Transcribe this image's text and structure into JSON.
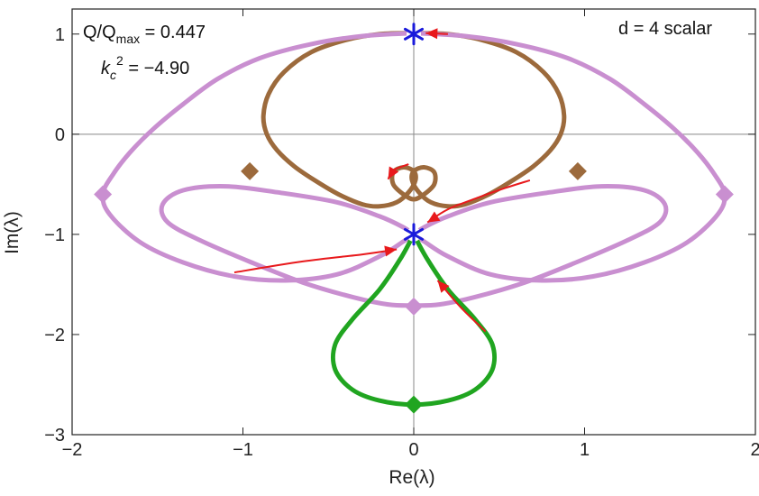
{
  "chart_data": {
    "type": "line",
    "title": "",
    "xlabel": "Re(λ)",
    "ylabel": "Im(λ)",
    "xlim": [
      -2,
      2
    ],
    "ylim": [
      -3,
      1.25
    ],
    "xticks": [
      -2,
      -1,
      0,
      1,
      2
    ],
    "yticks": [
      -3,
      -2,
      -1,
      0,
      1
    ],
    "xtick_labels": [
      "−2",
      "−1",
      "0",
      "1",
      "2"
    ],
    "ytick_labels": [
      "−3",
      "−2",
      "−1",
      "0",
      "1"
    ],
    "grid": false,
    "zero_lines": true,
    "annotations": {
      "ratio_lhs_main": "Q/Q",
      "ratio_lhs_sub": "max",
      "ratio_rhs": " = 0.447",
      "kc_main": "k",
      "kc_sub": "c",
      "kc_sup": "2",
      "kc_rhs": " = −4.90",
      "case": "d = 4 scalar"
    },
    "colors": {
      "brown": "#9c6a3c",
      "pink": "#c98fd0",
      "green": "#20a520",
      "red": "#e8191c",
      "star": "#1a1adb"
    },
    "series": [
      {
        "color": "#9c6a3c",
        "points": [
          [
            0,
            1.01
          ],
          [
            0.2,
            1.0
          ],
          [
            0.4,
            0.94
          ],
          [
            0.6,
            0.82
          ],
          [
            0.76,
            0.62
          ],
          [
            0.85,
            0.4
          ],
          [
            0.88,
            0.18
          ],
          [
            0.86,
            0.0
          ],
          [
            0.8,
            -0.16
          ],
          [
            0.7,
            -0.32
          ],
          [
            0.58,
            -0.46
          ],
          [
            0.44,
            -0.6
          ],
          [
            0.3,
            -0.7
          ],
          [
            0.2,
            -0.72
          ],
          [
            0.1,
            -0.68
          ],
          [
            0.03,
            -0.58
          ],
          [
            -0.01,
            -0.46
          ],
          [
            0.0,
            -0.37
          ],
          [
            0.06,
            -0.33
          ],
          [
            0.12,
            -0.38
          ],
          [
            0.12,
            -0.5
          ],
          [
            0.06,
            -0.6
          ],
          [
            0,
            -0.65
          ],
          [
            -0.06,
            -0.6
          ],
          [
            -0.12,
            -0.5
          ],
          [
            -0.12,
            -0.38
          ],
          [
            -0.06,
            -0.33
          ],
          [
            0.0,
            -0.37
          ],
          [
            0.01,
            -0.46
          ],
          [
            -0.03,
            -0.58
          ],
          [
            -0.1,
            -0.68
          ],
          [
            -0.2,
            -0.72
          ],
          [
            -0.3,
            -0.7
          ],
          [
            -0.44,
            -0.6
          ],
          [
            -0.58,
            -0.46
          ],
          [
            -0.7,
            -0.32
          ],
          [
            -0.8,
            -0.16
          ],
          [
            -0.86,
            0.0
          ],
          [
            -0.88,
            0.18
          ],
          [
            -0.85,
            0.4
          ],
          [
            -0.76,
            0.62
          ],
          [
            -0.6,
            0.82
          ],
          [
            -0.4,
            0.94
          ],
          [
            -0.2,
            1.0
          ],
          [
            0,
            1.01
          ]
        ]
      },
      {
        "color": "#c98fd0",
        "points": [
          [
            0,
            1.01
          ],
          [
            0.3,
            0.98
          ],
          [
            0.6,
            0.9
          ],
          [
            0.9,
            0.76
          ],
          [
            1.15,
            0.55
          ],
          [
            1.35,
            0.3
          ],
          [
            1.52,
            0.06
          ],
          [
            1.66,
            -0.18
          ],
          [
            1.76,
            -0.4
          ],
          [
            1.82,
            -0.6
          ],
          [
            1.78,
            -0.8
          ],
          [
            1.6,
            -1.08
          ],
          [
            1.35,
            -1.28
          ],
          [
            1.05,
            -1.42
          ],
          [
            0.75,
            -1.46
          ],
          [
            0.45,
            -1.4
          ],
          [
            0.2,
            -1.22
          ],
          [
            0.06,
            -1.07
          ],
          [
            0,
            -1.0
          ],
          [
            -0.06,
            -0.93
          ],
          [
            -0.2,
            -0.82
          ],
          [
            -0.45,
            -0.68
          ],
          [
            -0.8,
            -0.58
          ],
          [
            -1.1,
            -0.52
          ],
          [
            -1.35,
            -0.56
          ],
          [
            -1.47,
            -0.7
          ],
          [
            -1.44,
            -0.88
          ],
          [
            -1.25,
            -1.06
          ],
          [
            -0.95,
            -1.28
          ],
          [
            -0.65,
            -1.48
          ],
          [
            -0.35,
            -1.63
          ],
          [
            -0.15,
            -1.7
          ],
          [
            0,
            -1.71
          ],
          [
            0.15,
            -1.7
          ],
          [
            0.35,
            -1.63
          ],
          [
            0.65,
            -1.48
          ],
          [
            0.95,
            -1.28
          ],
          [
            1.25,
            -1.06
          ],
          [
            1.44,
            -0.88
          ],
          [
            1.47,
            -0.7
          ],
          [
            1.35,
            -0.56
          ],
          [
            1.1,
            -0.52
          ],
          [
            0.8,
            -0.58
          ],
          [
            0.45,
            -0.68
          ],
          [
            0.2,
            -0.82
          ],
          [
            0.06,
            -0.93
          ],
          [
            0,
            -1.0
          ],
          [
            -0.06,
            -1.07
          ],
          [
            -0.2,
            -1.22
          ],
          [
            -0.45,
            -1.4
          ],
          [
            -0.75,
            -1.46
          ],
          [
            -1.05,
            -1.42
          ],
          [
            -1.35,
            -1.28
          ],
          [
            -1.6,
            -1.08
          ],
          [
            -1.78,
            -0.8
          ],
          [
            -1.82,
            -0.6
          ],
          [
            -1.76,
            -0.4
          ],
          [
            -1.66,
            -0.18
          ],
          [
            -1.52,
            0.06
          ],
          [
            -1.35,
            0.3
          ],
          [
            -1.15,
            0.55
          ],
          [
            -0.9,
            0.76
          ],
          [
            -0.6,
            0.9
          ],
          [
            -0.3,
            0.98
          ],
          [
            0,
            1.01
          ]
        ]
      },
      {
        "color": "#20a520",
        "points": [
          [
            0,
            -1.0
          ],
          [
            0.08,
            -1.25
          ],
          [
            0.2,
            -1.55
          ],
          [
            0.36,
            -1.85
          ],
          [
            0.46,
            -2.1
          ],
          [
            0.46,
            -2.35
          ],
          [
            0.36,
            -2.55
          ],
          [
            0.2,
            -2.66
          ],
          [
            0,
            -2.7
          ],
          [
            -0.2,
            -2.66
          ],
          [
            -0.36,
            -2.55
          ],
          [
            -0.46,
            -2.35
          ],
          [
            -0.46,
            -2.1
          ],
          [
            -0.36,
            -1.85
          ],
          [
            -0.2,
            -1.55
          ],
          [
            -0.08,
            -1.25
          ],
          [
            0,
            -1.0
          ]
        ]
      }
    ],
    "arrows": [
      {
        "points": [
          [
            0.2,
            1.0
          ],
          [
            0.07,
            1.01
          ]
        ]
      },
      {
        "points": [
          [
            0.68,
            -0.46
          ],
          [
            0.53,
            -0.54
          ],
          [
            0.38,
            -0.63
          ],
          [
            0.2,
            -0.75
          ],
          [
            0.08,
            -0.88
          ]
        ]
      },
      {
        "points": [
          [
            -0.03,
            -0.3
          ],
          [
            -0.12,
            -0.36
          ],
          [
            -0.15,
            -0.45
          ]
        ]
      },
      {
        "points": [
          [
            -1.05,
            -1.38
          ],
          [
            -0.65,
            -1.27
          ],
          [
            -0.3,
            -1.2
          ],
          [
            -0.1,
            -1.15
          ]
        ]
      },
      {
        "points": [
          [
            0.42,
            -1.97
          ],
          [
            0.27,
            -1.72
          ],
          [
            0.14,
            -1.46
          ]
        ]
      }
    ],
    "markers": [
      {
        "shape": "star",
        "color": "#1a1adb",
        "x": 0,
        "y": 1.0
      },
      {
        "shape": "star",
        "color": "#1a1adb",
        "x": 0,
        "y": -1.0
      },
      {
        "shape": "diamond",
        "color": "#9c6a3c",
        "x": -0.96,
        "y": -0.37
      },
      {
        "shape": "diamond",
        "color": "#9c6a3c",
        "x": 0.96,
        "y": -0.37
      },
      {
        "shape": "diamond",
        "color": "#c98fd0",
        "x": -1.82,
        "y": -0.6
      },
      {
        "shape": "diamond",
        "color": "#c98fd0",
        "x": 1.82,
        "y": -0.6
      },
      {
        "shape": "diamond",
        "color": "#c98fd0",
        "x": 0,
        "y": -1.72
      },
      {
        "shape": "diamond",
        "color": "#20a520",
        "x": 0,
        "y": -2.7
      }
    ]
  }
}
